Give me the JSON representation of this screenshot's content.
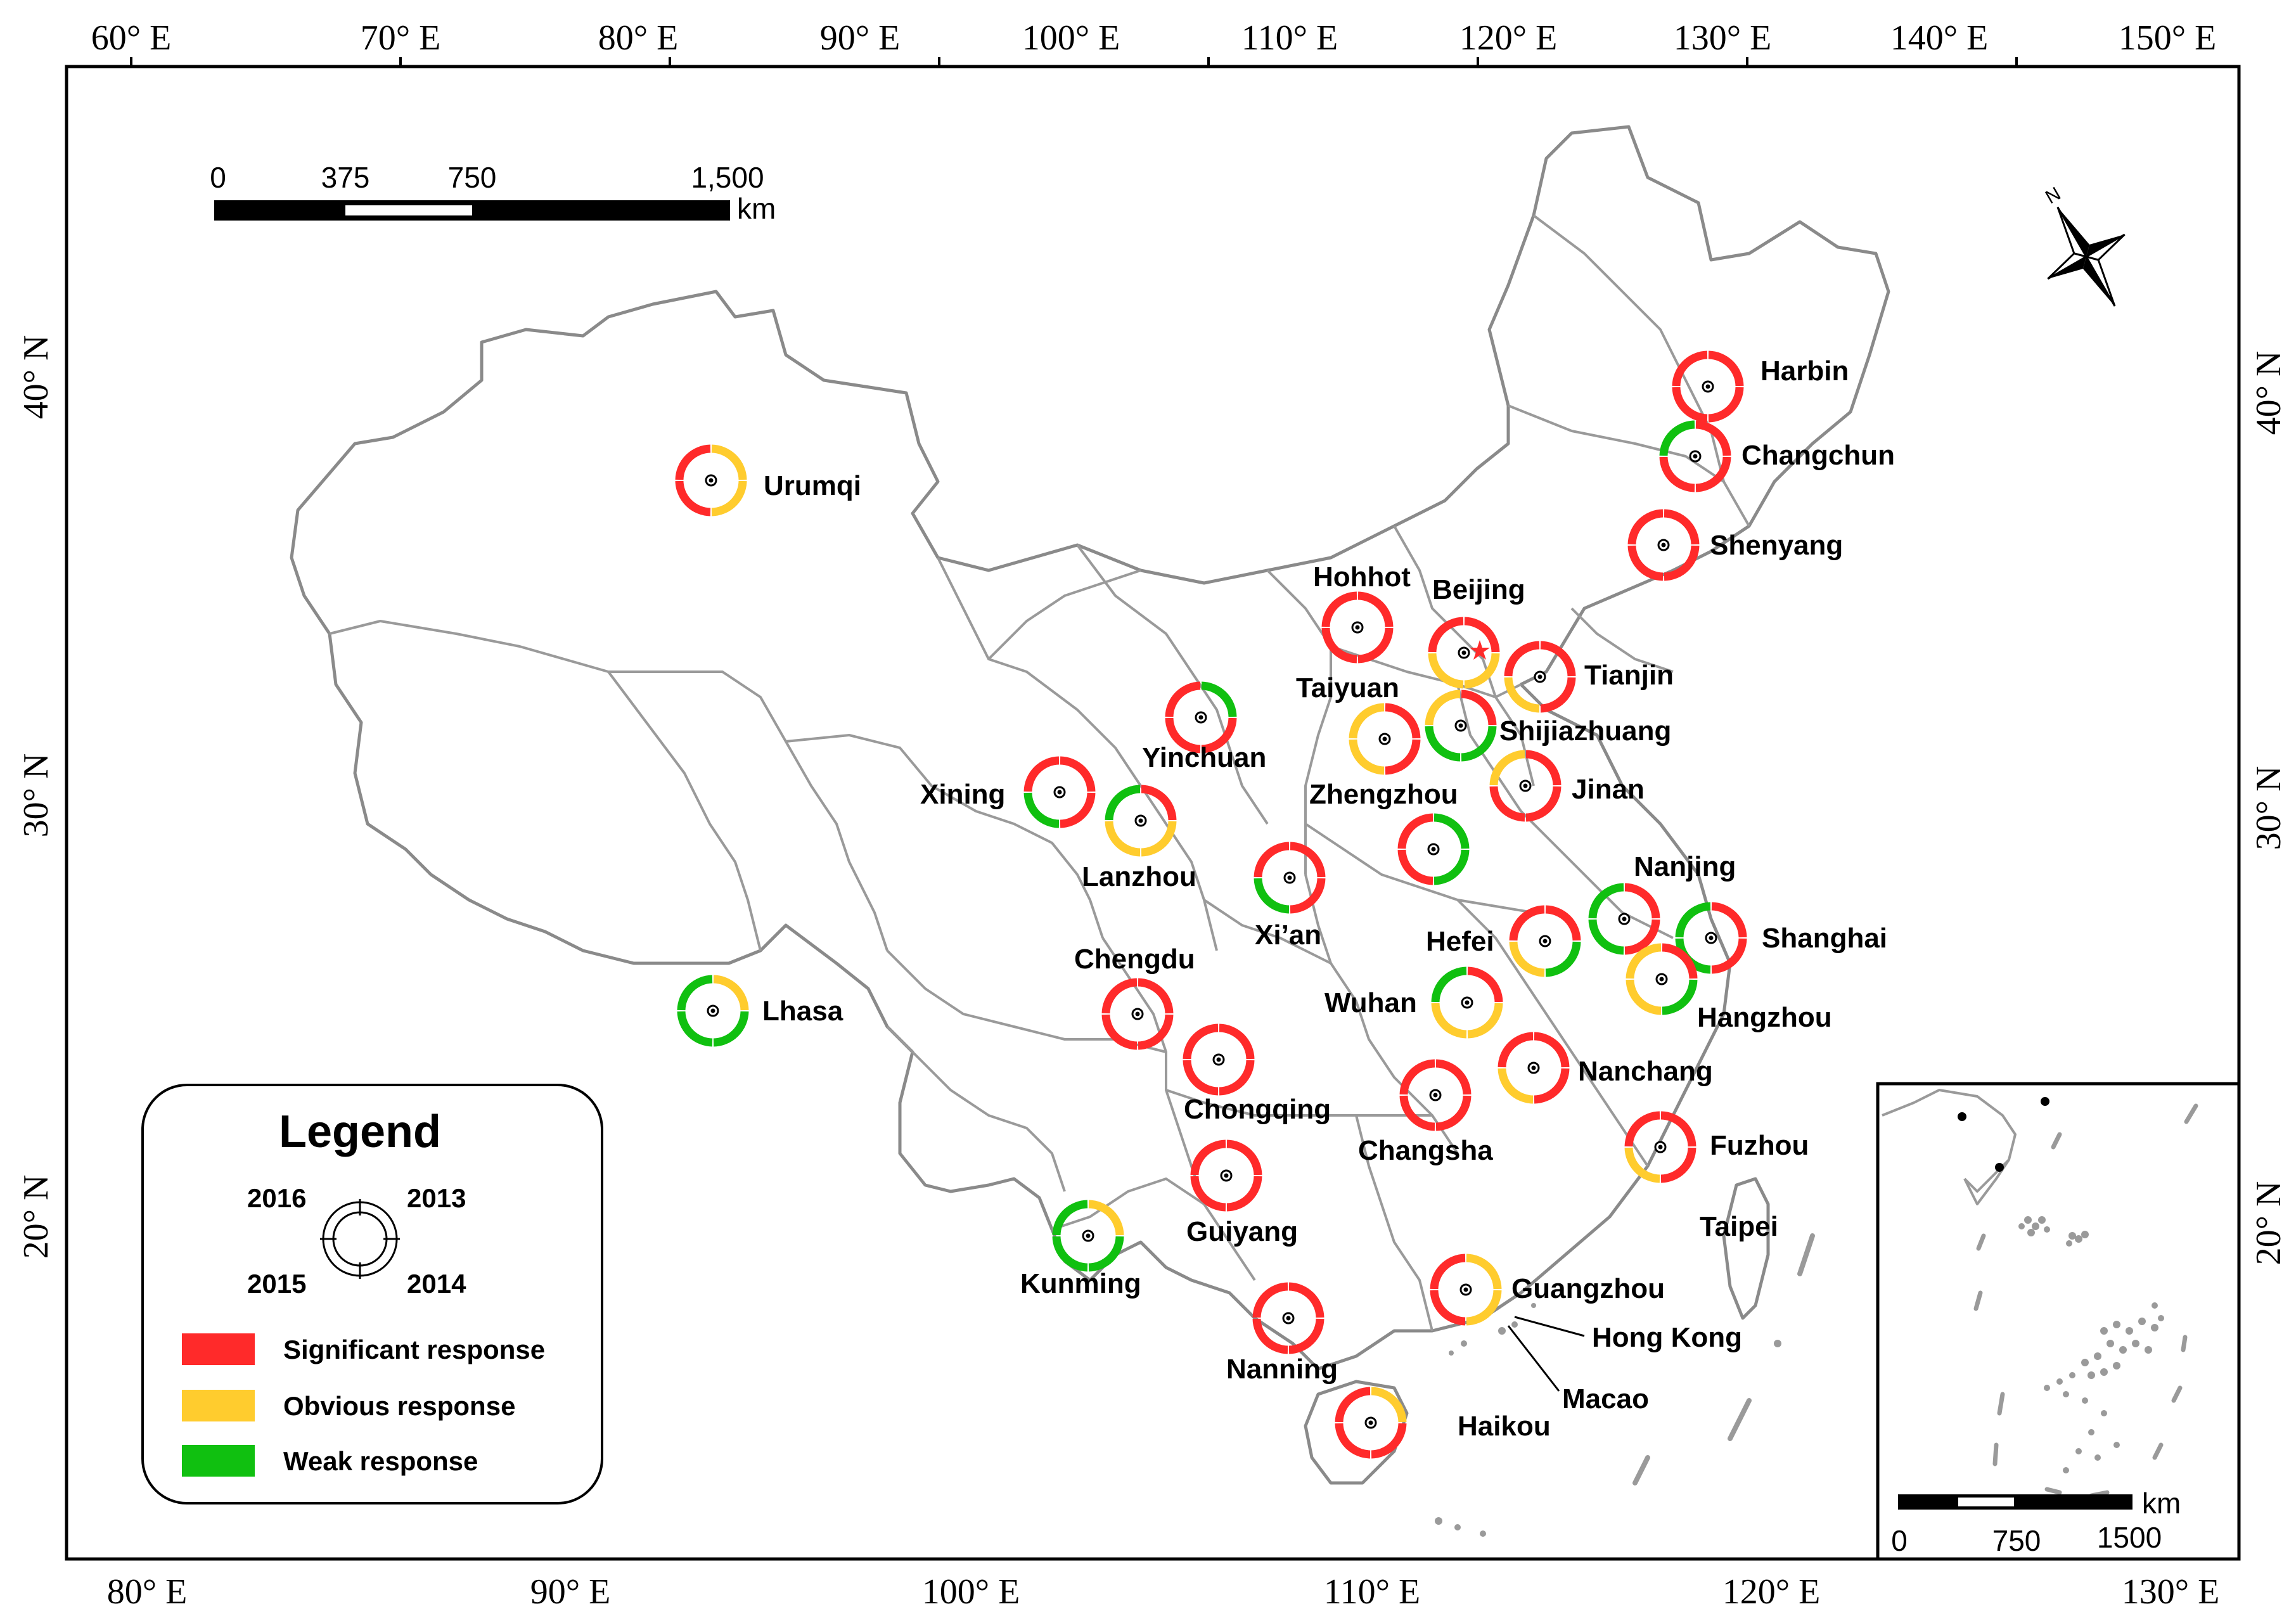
{
  "axes": {
    "top_lon": [
      "60° E",
      "70° E",
      "80° E",
      "90° E",
      "100° E",
      "110° E",
      "120° E",
      "130° E",
      "140° E",
      "150° E"
    ],
    "bottom_lon": [
      "80° E",
      "90° E",
      "100° E",
      "110° E",
      "120° E",
      "130° E"
    ],
    "left_lat": [
      "40° N",
      "30° N",
      "20° N"
    ],
    "right_lat": [
      "40° N",
      "30° N",
      "20° N"
    ]
  },
  "scale_bar": {
    "ticks": [
      "0",
      "375",
      "750",
      "1,500"
    ],
    "unit": "km"
  },
  "inset": {
    "ticks": [
      "0",
      "750",
      "1500"
    ],
    "unit": "km"
  },
  "north_arrow": {
    "letter": "N"
  },
  "legend": {
    "title": "Legend",
    "years": {
      "top_left": "2016",
      "top_right": "2013",
      "bottom_left": "2015",
      "bottom_right": "2014"
    },
    "items": [
      {
        "label": "Significant response",
        "color": "#ff2a2a"
      },
      {
        "label": "Obvious response",
        "color": "#ffcc2e"
      },
      {
        "label": "Weak response",
        "color": "#10c010"
      }
    ]
  },
  "response_colors": {
    "S": "#ff2a2a",
    "O": "#ffcc2e",
    "W": "#10c010"
  },
  "quadrant_order": [
    "2013 (upper-right)",
    "2014 (lower-right)",
    "2015 (lower-left)",
    "2016 (upper-left)"
  ],
  "cities": [
    {
      "name": "Harbin",
      "responses": [
        "S",
        "S",
        "S",
        "S"
      ]
    },
    {
      "name": "Changchun",
      "responses": [
        "S",
        "S",
        "S",
        "W"
      ]
    },
    {
      "name": "Shenyang",
      "responses": [
        "S",
        "S",
        "S",
        "S"
      ]
    },
    {
      "name": "Urumqi",
      "responses": [
        "O",
        "O",
        "S",
        "S"
      ]
    },
    {
      "name": "Hohhot",
      "responses": [
        "S",
        "S",
        "S",
        "S"
      ]
    },
    {
      "name": "Beijing",
      "responses": [
        "S",
        "O",
        "O",
        "S"
      ]
    },
    {
      "name": "Tianjin",
      "responses": [
        "S",
        "S",
        "O",
        "S"
      ]
    },
    {
      "name": "Taiyuan",
      "responses": [
        "S",
        "S",
        "O",
        "O"
      ]
    },
    {
      "name": "Shijiazhuang",
      "responses": [
        "S",
        "W",
        "W",
        "O"
      ]
    },
    {
      "name": "Yinchuan",
      "responses": [
        "W",
        "S",
        "S",
        "S"
      ]
    },
    {
      "name": "Zhengzhou",
      "responses": [
        "W",
        "W",
        "S",
        "S"
      ]
    },
    {
      "name": "Jinan",
      "responses": [
        "S",
        "S",
        "S",
        "O"
      ]
    },
    {
      "name": "Xining",
      "responses": [
        "S",
        "S",
        "W",
        "S"
      ]
    },
    {
      "name": "Lanzhou",
      "responses": [
        "S",
        "O",
        "O",
        "W"
      ]
    },
    {
      "name": "Xi’an",
      "responses": [
        "S",
        "S",
        "W",
        "S"
      ]
    },
    {
      "name": "Nanjing",
      "responses": [
        "S",
        "S",
        "W",
        "W"
      ]
    },
    {
      "name": "Shanghai",
      "responses": [
        "S",
        "S",
        "W",
        "W"
      ]
    },
    {
      "name": "Hefei",
      "responses": [
        "S",
        "W",
        "O",
        "S"
      ]
    },
    {
      "name": "Hangzhou",
      "responses": [
        "S",
        "W",
        "O",
        "O"
      ]
    },
    {
      "name": "Lhasa",
      "responses": [
        "O",
        "W",
        "W",
        "W"
      ]
    },
    {
      "name": "Chengdu",
      "responses": [
        "S",
        "S",
        "S",
        "S"
      ]
    },
    {
      "name": "Wuhan",
      "responses": [
        "S",
        "O",
        "O",
        "W"
      ]
    },
    {
      "name": "Chongqing",
      "responses": [
        "S",
        "S",
        "S",
        "S"
      ]
    },
    {
      "name": "Nanchang",
      "responses": [
        "S",
        "S",
        "O",
        "S"
      ]
    },
    {
      "name": "Changsha",
      "responses": [
        "S",
        "S",
        "S",
        "S"
      ]
    },
    {
      "name": "Fuzhou",
      "responses": [
        "S",
        "S",
        "O",
        "S"
      ]
    },
    {
      "name": "Taipei",
      "responses": []
    },
    {
      "name": "Guiyang",
      "responses": [
        "S",
        "S",
        "S",
        "S"
      ]
    },
    {
      "name": "Kunming",
      "responses": [
        "O",
        "W",
        "W",
        "W"
      ]
    },
    {
      "name": "Guangzhou",
      "responses": [
        "O",
        "O",
        "S",
        "S"
      ]
    },
    {
      "name": "Hong Kong",
      "responses": []
    },
    {
      "name": "Nanning",
      "responses": [
        "S",
        "S",
        "S",
        "S"
      ]
    },
    {
      "name": "Macao",
      "responses": []
    },
    {
      "name": "Haikou",
      "responses": [
        "O",
        "S",
        "S",
        "S"
      ]
    }
  ]
}
